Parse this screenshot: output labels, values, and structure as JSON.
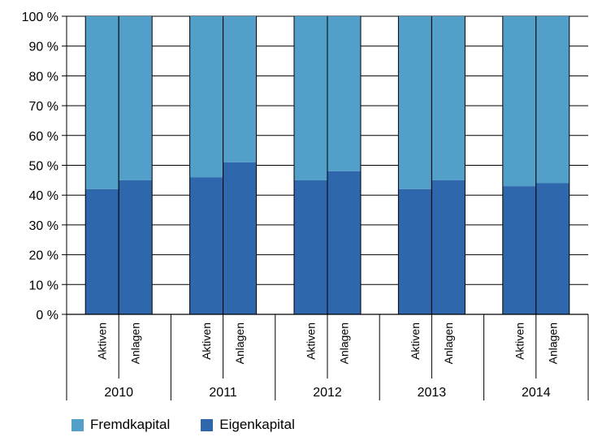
{
  "chart_data": {
    "type": "bar",
    "stacked": true,
    "percent_stacked": true,
    "groups": [
      "2010",
      "2011",
      "2012",
      "2013",
      "2014"
    ],
    "subcategories": [
      "Aktiven",
      "Anlagen"
    ],
    "series": [
      {
        "name": "Eigenkapital",
        "color": "#2e67ac",
        "values": [
          [
            42,
            45
          ],
          [
            46,
            51
          ],
          [
            45,
            48
          ],
          [
            42,
            45
          ],
          [
            43,
            44
          ]
        ]
      },
      {
        "name": "Fremdkapital",
        "color": "#52a0ca",
        "values": [
          [
            58,
            55
          ],
          [
            54,
            49
          ],
          [
            55,
            52
          ],
          [
            58,
            55
          ],
          [
            57,
            56
          ]
        ]
      }
    ],
    "y_ticks": [
      "0 %",
      "10 %",
      "20 %",
      "30 %",
      "40 %",
      "50 %",
      "60 %",
      "70 %",
      "80 %",
      "90 %",
      "100 %"
    ],
    "ylim": [
      0,
      100
    ],
    "grid": true,
    "legend_position": "bottom-left"
  },
  "legend": [
    {
      "label": "Fremdkapital",
      "color": "#52a0ca"
    },
    {
      "label": "Eigenkapital",
      "color": "#2e67ac"
    }
  ]
}
